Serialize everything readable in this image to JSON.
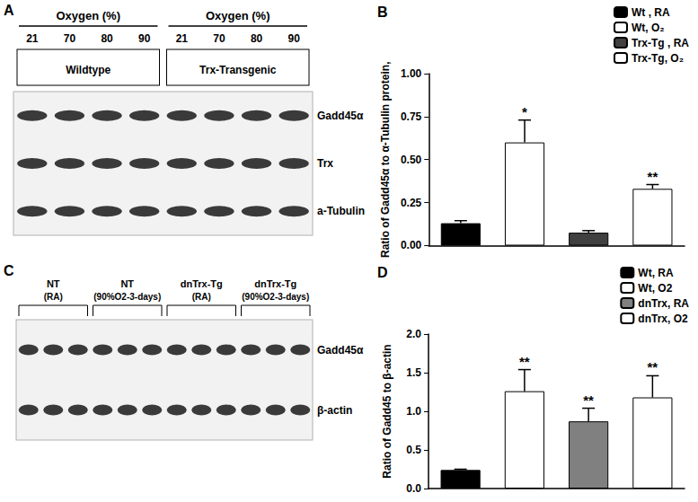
{
  "blots": [
    {
      "panel": "A",
      "groups": [
        {
          "header": "Oxygen (%)",
          "lanes": [
            "21",
            "70",
            "80",
            "90"
          ],
          "name": "Wildtype"
        },
        {
          "header": "Oxygen (%)",
          "lanes": [
            "21",
            "70",
            "80",
            "90"
          ],
          "name": "Trx-Transgenic"
        }
      ],
      "rows": [
        "Gadd45α",
        "Trx",
        "a-Tubulin"
      ]
    },
    {
      "panel": "C",
      "groups": [
        {
          "name": "NT",
          "condition": "(RA)",
          "lane_count": 3
        },
        {
          "name": "NT",
          "condition": "(90%O2-3-days)",
          "lane_count": 3
        },
        {
          "name": "dnTrx-Tg",
          "condition": "(RA)",
          "lane_count": 3
        },
        {
          "name": "dnTrx-Tg",
          "condition": "(90%O2-3-days)",
          "lane_count": 3
        }
      ],
      "rows": [
        "Gadd45α",
        "β-actin"
      ]
    }
  ],
  "chart_data": [
    {
      "type": "bar",
      "panel": "B",
      "y_label": "Ratio of Gadd45α to α-Tubulin protein,",
      "series": [
        {
          "name": "Wt , RA",
          "color": "#000000",
          "values": [
            0.13
          ],
          "errors": [
            0.015
          ]
        },
        {
          "name": "Wt, O₂",
          "color": "#ffffff",
          "values": [
            0.6
          ],
          "errors": [
            0.13
          ],
          "significance": "*"
        },
        {
          "name": "Trx-Tg , RA",
          "color": "#404040",
          "values": [
            0.075
          ],
          "errors": [
            0.012
          ]
        },
        {
          "name": "Trx-Tg, O₂",
          "color": "#ffffff",
          "values": [
            0.33
          ],
          "errors": [
            0.025
          ],
          "significance": "**"
        }
      ],
      "ylim": [
        0,
        1
      ],
      "yticks": [
        {
          "value": 0,
          "label": "0.00"
        },
        {
          "value": 0.25,
          "label": "0.25"
        },
        {
          "value": 0.5,
          "label": "0.50"
        },
        {
          "value": 0.75,
          "label": "0.75"
        },
        {
          "value": 1,
          "label": "1.00"
        }
      ],
      "grid": false,
      "legend": "upper right",
      "tick_labels": "y"
    },
    {
      "type": "bar",
      "panel": "D",
      "y_label": "Ratio of Gadd45 to β-actin",
      "series": [
        {
          "name": "Wt, RA",
          "color": "#000000",
          "values": [
            0.24
          ],
          "errors": [
            0.01
          ]
        },
        {
          "name": "Wt, O2",
          "color": "#ffffff",
          "values": [
            1.26
          ],
          "errors": [
            0.28
          ],
          "significance": "**"
        },
        {
          "name": "dnTrx, RA",
          "color": "#808080",
          "values": [
            0.87
          ],
          "errors": [
            0.17
          ],
          "significance": "**"
        },
        {
          "name": "dnTrx, O2",
          "color": "#ffffff",
          "values": [
            1.18
          ],
          "errors": [
            0.28
          ],
          "significance": "**"
        }
      ],
      "ylim": [
        0,
        2
      ],
      "yticks": [
        {
          "value": 0,
          "label": "0.0"
        },
        {
          "value": 0.5,
          "label": "0.5"
        },
        {
          "value": 1,
          "label": "1.0"
        },
        {
          "value": 1.5,
          "label": "1.5"
        },
        {
          "value": 2,
          "label": "2.0"
        }
      ],
      "grid": false,
      "legend": "upper right",
      "tick_labels": "y"
    }
  ]
}
